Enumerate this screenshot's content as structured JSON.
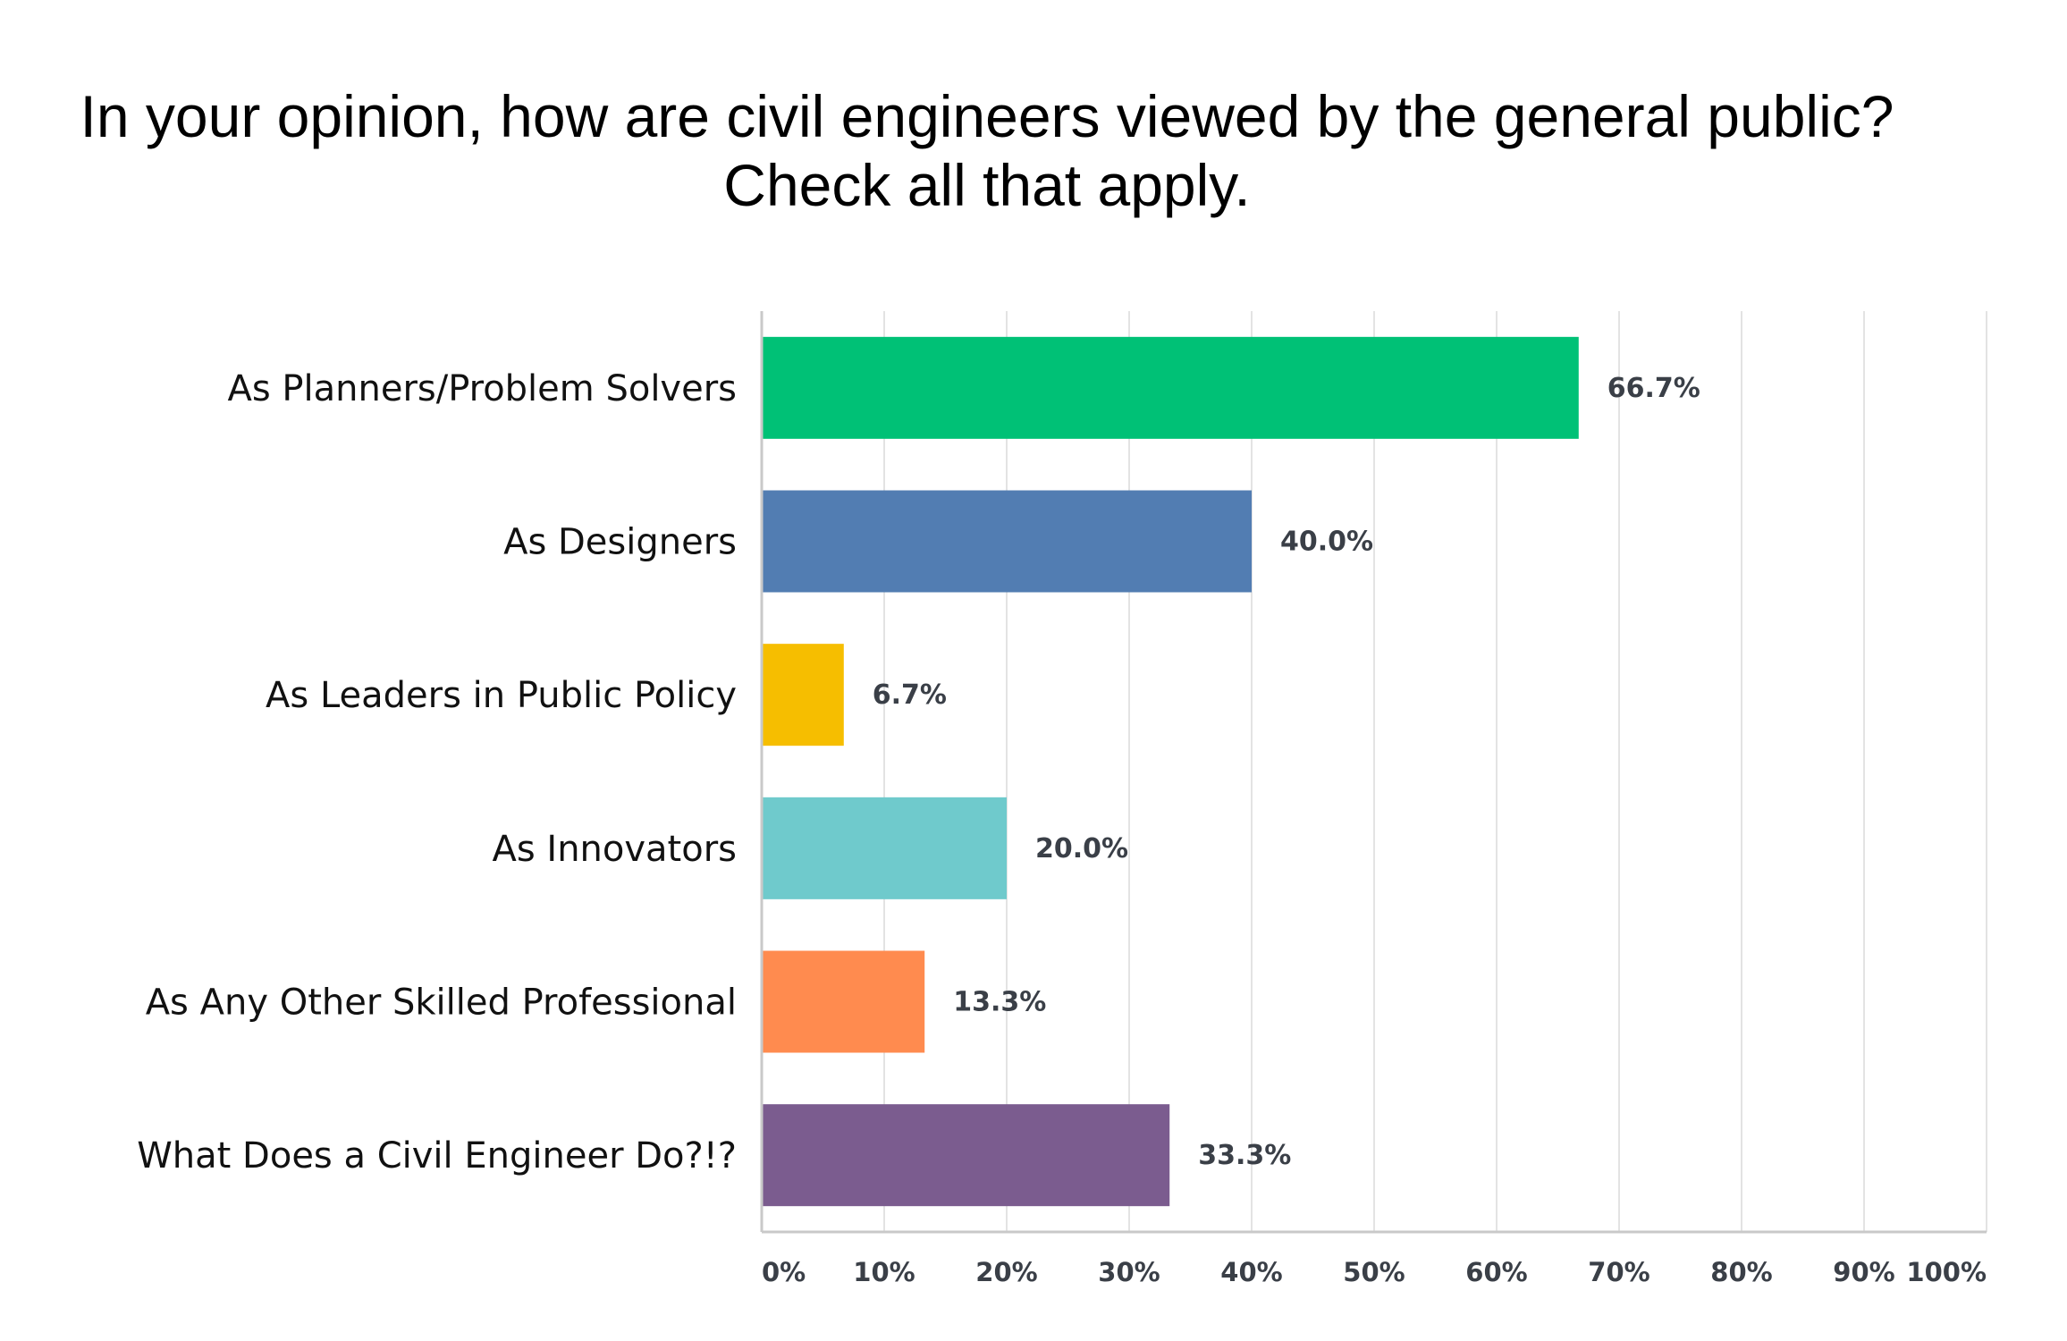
{
  "chart_data": {
    "type": "bar",
    "orientation": "horizontal",
    "title": [
      "In your opinion, how are civil engineers viewed by the general public?",
      "Check all that apply."
    ],
    "categories": [
      "As Planners/Problem Solvers",
      "As Designers",
      "As Leaders in Public Policy",
      "As Innovators",
      "As Any Other Skilled Professional",
      "What Does a Civil Engineer Do?!?"
    ],
    "values": [
      66.7,
      40.0,
      6.7,
      20.0,
      13.3,
      33.3
    ],
    "value_labels": [
      "66.7%",
      "40.0%",
      "6.7%",
      "20.0%",
      "13.3%",
      "33.3%"
    ],
    "colors": [
      "#00c176",
      "#527db2",
      "#f6be00",
      "#6fcacc",
      "#ff8b4f",
      "#7b5c8f"
    ],
    "xlim": [
      0,
      100
    ],
    "x_ticks": [
      0,
      10,
      20,
      30,
      40,
      50,
      60,
      70,
      80,
      90,
      100
    ],
    "x_tick_labels": [
      "0%",
      "10%",
      "20%",
      "30%",
      "40%",
      "50%",
      "60%",
      "70%",
      "80%",
      "90%",
      "100%"
    ],
    "grid": "vertical",
    "legend": "none"
  }
}
